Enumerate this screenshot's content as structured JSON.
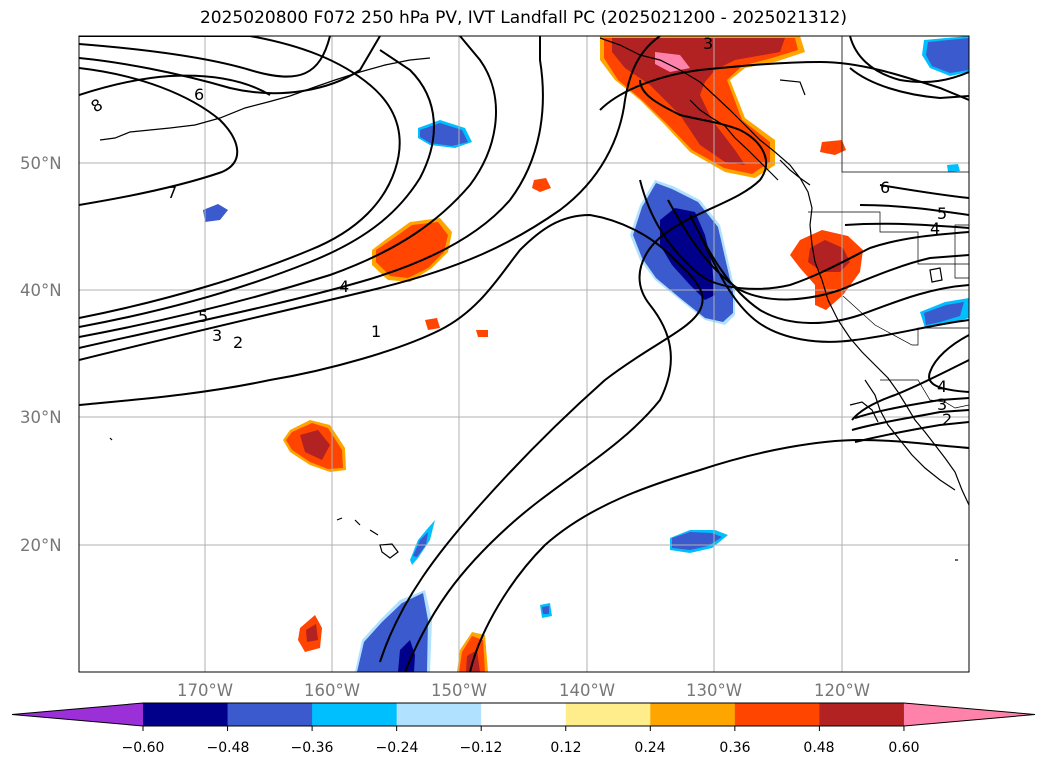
{
  "title": "2025020800 F072 250 hPa PV, IVT Landfall PC (2025021200 - 2025021312)",
  "map": {
    "longitude_labels": [
      "170°W",
      "160°W",
      "150°W",
      "140°W",
      "130°W",
      "120°W"
    ],
    "latitude_labels": [
      "50°N",
      "40°N",
      "30°N",
      "20°N"
    ],
    "gridline_color": "#b0b0b0",
    "coastline_color": "#000000"
  },
  "contours": {
    "labels": [
      "8",
      "6",
      "7",
      "5",
      "3",
      "2",
      "4",
      "1",
      "3",
      "6",
      "5",
      "4",
      "4",
      "3",
      "2"
    ]
  },
  "colorbar": {
    "tick_labels": [
      "−0.60",
      "−0.48",
      "−0.36",
      "−0.24",
      "−0.12",
      "0.12",
      "0.24",
      "0.36",
      "0.48",
      "0.60"
    ],
    "colors": [
      "#9b30d9",
      "#00008b",
      "#3a5acd",
      "#00bfff",
      "#b0e2ff",
      "#ffffff",
      "#ffec8b",
      "#ffa500",
      "#ff4500",
      "#b22222",
      "#ff82ab"
    ]
  }
}
